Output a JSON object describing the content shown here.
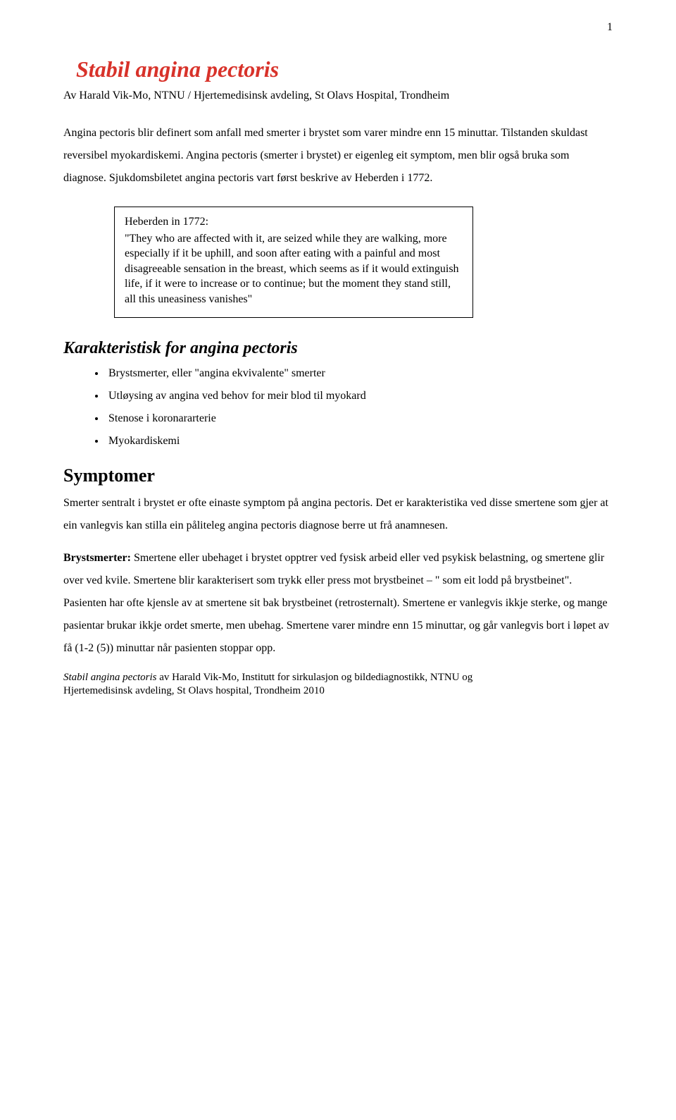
{
  "page_number": "1",
  "title": "Stabil angina pectoris",
  "byline": "Av Harald Vik-Mo, NTNU / Hjertemedisinsk avdeling, St Olavs Hospital, Trondheim",
  "intro": "Angina pectoris blir definert som anfall med smerter i brystet som varer mindre enn 15 minuttar. Tilstanden skuldast reversibel myokardiskemi. Angina pectoris (smerter i brystet) er eigenleg eit symptom, men blir også bruka som diagnose. Sjukdomsbiletet angina pectoris vart først beskrive av Heberden i 1772.",
  "quote_head": "Heberden in 1772:",
  "quote_body": "\"They who are affected with it, are seized while they are walking, more especially if it be uphill, and soon after eating with a painful and most disagreeable sensation in the breast, which seems as if it would extinguish life, if it were to increase or to continue; but the moment they stand still, all this uneasiness vanishes\"",
  "section_char_heading": "Karakteristisk for angina pectoris",
  "char_bullets": [
    "Brystsmerter, eller \"angina ekvivalente\" smerter",
    "Utløysing av angina ved behov for meir blod til myokard",
    "Stenose i koronararterie",
    "Myokardiskemi"
  ],
  "section_symptom_heading": "Symptomer",
  "symptom_p1": "Smerter sentralt i brystet er ofte einaste symptom på angina pectoris. Det er karakteristika ved disse smertene som gjer at ein vanlegvis kan stilla ein påliteleg angina pectoris diagnose berre ut frå anamnesen.",
  "brystsmerter_label": "Brystsmerter:",
  "brystsmerter_text": " Smertene eller ubehaget i brystet opptrer ved fysisk arbeid eller ved psykisk belastning, og smertene glir over ved kvile. Smertene blir karakterisert som trykk eller press mot brystbeinet – \" som eit lodd på brystbeinet\". Pasienten har ofte kjensle av at smertene sit bak brystbeinet (retrosternalt). Smertene er vanlegvis ikkje sterke, og mange pasientar brukar ikkje ordet smerte, men ubehag. Smertene varer mindre enn 15 minuttar, og går vanlegvis bort i løpet av få (1-2 (5)) minuttar når pasienten stoppar opp.",
  "footer_l1prefix": "Stabil angina pectoris",
  "footer_l1rest": " av Harald Vik-Mo, Institutt for sirkulasjon og bildediagnostikk, NTNU og",
  "footer_l2": "Hjertemedisinsk avdeling, St Olavs hospital, Trondheim 2010",
  "colors": {
    "title": "#d8322a",
    "text": "#000000",
    "background": "#ffffff",
    "box_border": "#000000"
  },
  "fonts": {
    "body_family": "Times New Roman",
    "title_size_pt": 24,
    "h2_italic_size_pt": 18,
    "h2_bold_size_pt": 20,
    "body_size_pt": 12,
    "footer_size_pt": 11
  }
}
